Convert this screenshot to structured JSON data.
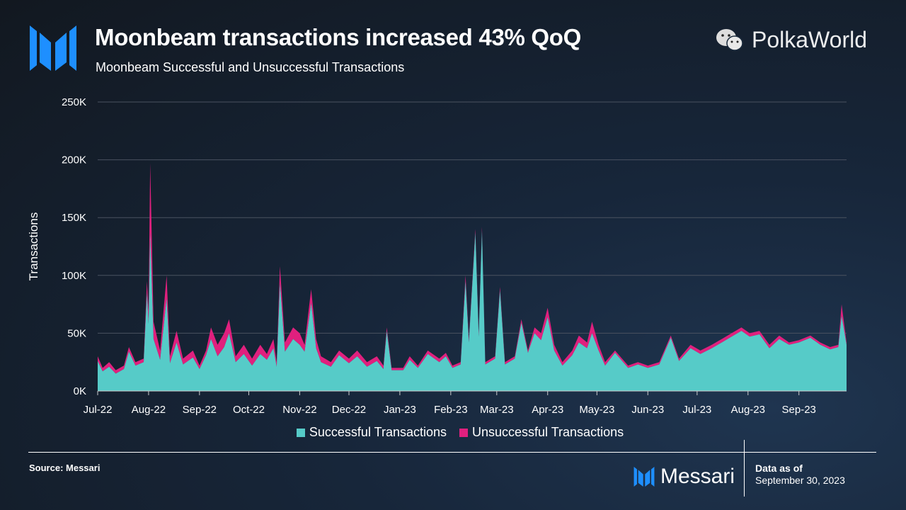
{
  "header": {
    "title": "Moonbeam transactions increased 43% QoQ",
    "subtitle": "Moonbeam Successful and Unsuccessful Transactions"
  },
  "footer": {
    "source": "Source: Messari",
    "brand": "Messari",
    "as_of_label": "Data as of",
    "as_of_date": "September 30, 2023",
    "watermark": "PolkaWorld"
  },
  "colors": {
    "successful": "#56cbc8",
    "unsuccessful": "#e0207e",
    "accent": "#1e8fff"
  },
  "icons": {
    "logo": "messari-logo",
    "watermark": "wechat-icon"
  },
  "chart_data": {
    "type": "area",
    "stacked": true,
    "xlabel": "",
    "ylabel": "Transactions",
    "ylim": [
      0,
      250000
    ],
    "yticks": [
      0,
      50000,
      100000,
      150000,
      200000,
      250000
    ],
    "ytick_labels": [
      "0K",
      "50K",
      "100K",
      "150K",
      "200K",
      "250K"
    ],
    "xticks": [
      "2022-07-01",
      "2022-08-01",
      "2022-09-01",
      "2022-10-01",
      "2022-11-01",
      "2022-12-01",
      "2023-01-01",
      "2023-02-01",
      "2023-03-01",
      "2023-04-01",
      "2023-05-01",
      "2023-06-01",
      "2023-07-01",
      "2023-08-01",
      "2023-09-01"
    ],
    "xtick_labels": [
      "Jul-22",
      "Aug-22",
      "Sep-22",
      "Oct-22",
      "Nov-22",
      "Dec-22",
      "Jan-23",
      "Feb-23",
      "Mar-23",
      "Apr-23",
      "May-23",
      "Jun-23",
      "Jul-23",
      "Aug-23",
      "Sep-23"
    ],
    "xlim": [
      "2022-07-01",
      "2023-09-30"
    ],
    "grid": "horizontal",
    "legend": "bottom",
    "x": [
      "2022-07-01",
      "2022-07-04",
      "2022-07-08",
      "2022-07-12",
      "2022-07-17",
      "2022-07-20",
      "2022-07-24",
      "2022-07-29",
      "2022-07-31",
      "2022-08-01",
      "2022-08-02",
      "2022-08-04",
      "2022-08-08",
      "2022-08-12",
      "2022-08-14",
      "2022-08-18",
      "2022-08-22",
      "2022-08-28",
      "2022-09-01",
      "2022-09-05",
      "2022-09-08",
      "2022-09-12",
      "2022-09-16",
      "2022-09-19",
      "2022-09-23",
      "2022-09-28",
      "2022-10-03",
      "2022-10-08",
      "2022-10-12",
      "2022-10-16",
      "2022-10-18",
      "2022-10-20",
      "2022-10-23",
      "2022-10-28",
      "2022-11-01",
      "2022-11-04",
      "2022-11-08",
      "2022-11-11",
      "2022-11-14",
      "2022-11-20",
      "2022-11-25",
      "2022-12-01",
      "2022-12-06",
      "2022-12-12",
      "2022-12-18",
      "2022-12-22",
      "2022-12-24",
      "2022-12-27",
      "2023-01-03",
      "2023-01-07",
      "2023-01-12",
      "2023-01-18",
      "2023-01-25",
      "2023-01-29",
      "2023-02-02",
      "2023-02-07",
      "2023-02-10",
      "2023-02-12",
      "2023-02-16",
      "2023-02-18",
      "2023-02-20",
      "2023-02-22",
      "2023-02-28",
      "2023-03-03",
      "2023-03-06",
      "2023-03-12",
      "2023-03-16",
      "2023-03-20",
      "2023-03-24",
      "2023-03-28",
      "2023-04-01",
      "2023-04-05",
      "2023-04-10",
      "2023-04-16",
      "2023-04-20",
      "2023-04-25",
      "2023-04-28",
      "2023-05-02",
      "2023-05-06",
      "2023-05-12",
      "2023-05-20",
      "2023-05-26",
      "2023-06-01",
      "2023-06-08",
      "2023-06-15",
      "2023-06-20",
      "2023-06-27",
      "2023-07-03",
      "2023-07-10",
      "2023-07-16",
      "2023-07-22",
      "2023-07-28",
      "2023-08-02",
      "2023-08-08",
      "2023-08-14",
      "2023-08-20",
      "2023-08-26",
      "2023-09-01",
      "2023-09-08",
      "2023-09-14",
      "2023-09-20",
      "2023-09-25",
      "2023-09-27",
      "2023-09-30"
    ],
    "series": [
      {
        "name": "Successful Transactions",
        "values": [
          26000,
          17000,
          21000,
          15000,
          19000,
          34000,
          22000,
          25000,
          85000,
          58000,
          137000,
          45000,
          27000,
          80000,
          24000,
          42000,
          23000,
          29000,
          19000,
          31000,
          45000,
          30000,
          38000,
          50000,
          25000,
          32000,
          22000,
          32000,
          27000,
          37000,
          21000,
          93000,
          34000,
          45000,
          40000,
          34000,
          76000,
          37000,
          25000,
          21000,
          31000,
          24000,
          30000,
          21000,
          26000,
          19000,
          52000,
          18000,
          18000,
          27000,
          20000,
          32000,
          25000,
          30000,
          20000,
          23000,
          95000,
          42000,
          137000,
          47000,
          139000,
          23000,
          28000,
          87000,
          23000,
          28000,
          59000,
          33000,
          50000,
          44000,
          64000,
          35000,
          22000,
          31000,
          42000,
          37000,
          50000,
          35000,
          22000,
          33000,
          20000,
          23000,
          20000,
          23000,
          46000,
          26000,
          37000,
          32000,
          37000,
          42000,
          47000,
          52000,
          47000,
          49000,
          37000,
          45000,
          40000,
          42000,
          46000,
          40000,
          36000,
          38000,
          65000,
          40000
        ]
      },
      {
        "name": "Unsuccessful Transactions",
        "values": [
          4000,
          3000,
          4000,
          3000,
          3000,
          4000,
          3000,
          3000,
          10000,
          12000,
          60000,
          15000,
          8000,
          20000,
          6000,
          10000,
          5000,
          6000,
          3000,
          4000,
          10000,
          10000,
          12000,
          12000,
          5000,
          8000,
          6000,
          8000,
          5000,
          8000,
          4000,
          15000,
          8000,
          10000,
          10000,
          6000,
          12000,
          8000,
          5000,
          4000,
          4000,
          4000,
          5000,
          4000,
          4000,
          3000,
          3000,
          2000,
          2000,
          3000,
          2000,
          3000,
          3000,
          3000,
          2000,
          2000,
          5000,
          3000,
          3000,
          3000,
          3000,
          2000,
          2000,
          3000,
          2000,
          2000,
          3000,
          2000,
          5000,
          6000,
          8000,
          5000,
          3000,
          4000,
          6000,
          5000,
          10000,
          5000,
          3000,
          2000,
          2000,
          2000,
          2000,
          2000,
          2000,
          2000,
          3000,
          3000,
          3000,
          3000,
          3000,
          3000,
          3000,
          3000,
          3000,
          3000,
          2000,
          2000,
          2000,
          2000,
          2000,
          2000,
          10000,
          2000
        ]
      }
    ]
  }
}
